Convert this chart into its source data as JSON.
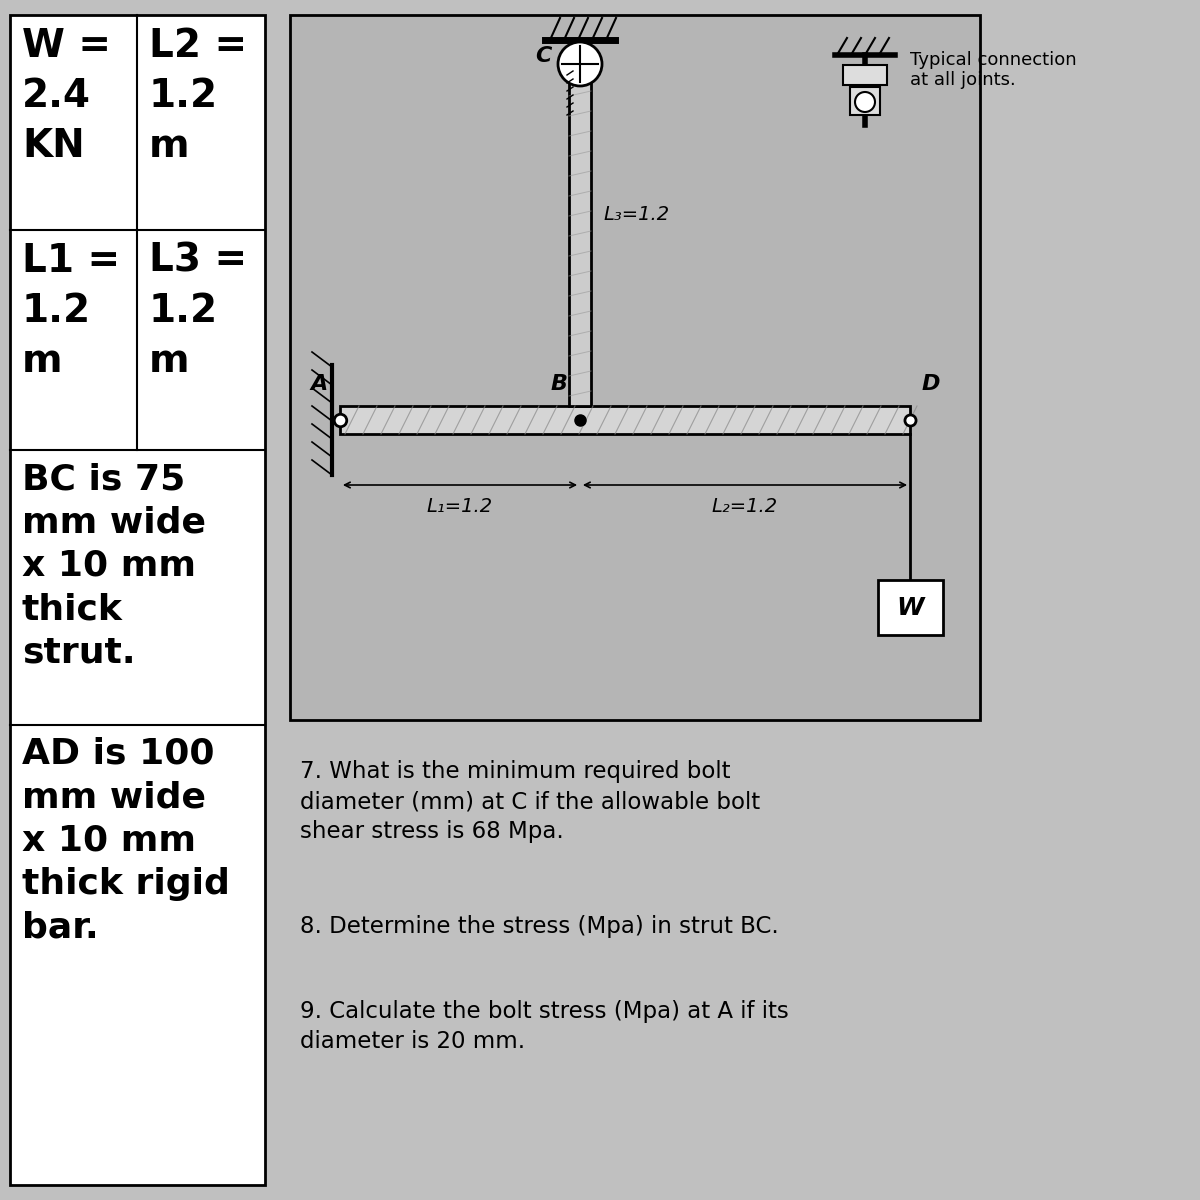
{
  "bg_color": "#c8c8c8",
  "table_bg": "#ffffff",
  "diagram_bg": "#b8b8b8",
  "q7": "7. What is the minimum required bolt\ndiameter (mm) at C if the allowable bolt\nshear stress is 68 Mpa.",
  "q8": "8. Determine the stress (Mpa) in strut BC.",
  "q9": "9. Calculate the bolt stress (Mpa) at A if its\ndiameter is 20 mm.",
  "typical_conn_text": "Typical connection\nat all joints.",
  "L3_label": "L₃=1.2",
  "L1_label": "L₁=1.2",
  "L2_label": "L₂=1.2",
  "A_label": "A",
  "B_label": "B",
  "C_label": "C",
  "D_label": "D",
  "W_label": "W",
  "row0_left": [
    "W =",
    "2.4",
    "KN"
  ],
  "row0_right": [
    "L2 =",
    "1.2",
    "m"
  ],
  "row1_left": [
    "L1 =",
    "1.2",
    "m"
  ],
  "row1_right": [
    "L3 =",
    "1.2",
    "m"
  ],
  "row2_text": "BC is 75\nmm wide\nx 10 mm\nthick\nstrut.",
  "row3_text": "AD is 100\nmm wide\nx 10 mm\nthick rigid\nbar."
}
